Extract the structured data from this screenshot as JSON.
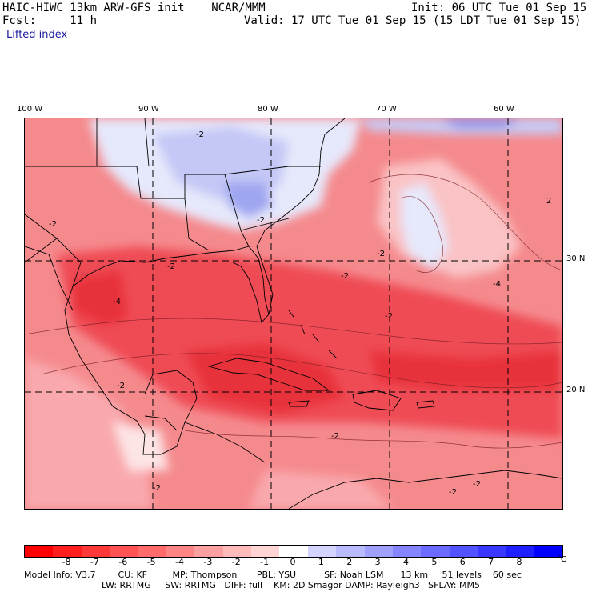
{
  "header": {
    "line1_left": "HAIC-HIWC 13km ARW-GFS init    NCAR/MMM",
    "line1_right": "Init: 06 UTC Tue 01 Sep 15",
    "line2_left": "Fcst:     11 h",
    "line2_right": "Valid: 17 UTC Tue 01 Sep 15 (15 LDT Tue 01 Sep 15)",
    "field_name": "Lifted index"
  },
  "map": {
    "longitude_labels": [
      "100 W",
      "90 W",
      "80 W",
      "70 W",
      "60 W"
    ],
    "latitude_labels": [
      "30 N",
      "20 N"
    ],
    "contour_labels": [
      "-2",
      "-2",
      "-2",
      "-2",
      "-2",
      "-2",
      "-2",
      "-2",
      "-4",
      "-4",
      "-2",
      "-2",
      "-2",
      "-2",
      "2"
    ],
    "colors": {
      "strong_negative": "#e8303a",
      "moderate_negative": "#f26168",
      "weak_negative": "#f8a6aa",
      "neutral": "#ffffff",
      "weak_positive": "#c9ccfa",
      "moderate_positive": "#8f95f0",
      "land_lines": "#000000"
    }
  },
  "colorbar": {
    "labels": [
      "-8",
      "-7",
      "-6",
      "-5",
      "-4",
      "-3",
      "-2",
      "-1",
      "0",
      "1",
      "2",
      "3",
      "4",
      "5",
      "6",
      "7",
      "8"
    ],
    "unit": "°C",
    "colors": [
      "#ff0000",
      "#ff1e1e",
      "#ff3838",
      "#ff5252",
      "#ff6b6b",
      "#ff8585",
      "#ffa0a0",
      "#ffbaba",
      "#ffd4d4",
      "#ffffff",
      "#d4d4ff",
      "#babaff",
      "#a0a0ff",
      "#8585ff",
      "#6b6bff",
      "#5252ff",
      "#3838ff",
      "#1e1eff",
      "#0000ff"
    ]
  },
  "model_info": {
    "row1": "Model Info: V3.7        CU: KF         MP: Thompson       PBL: YSU          SF: Noah LSM      13 km     51 levels    60 sec",
    "row2": "LW: RRTMG     SW: RRTMG   DIFF: full    KM: 2D Smagor DAMP: Rayleigh3   SFLAY: MM5"
  }
}
